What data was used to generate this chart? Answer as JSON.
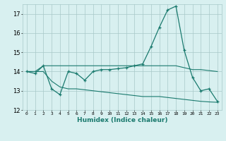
{
  "title": "",
  "xlabel": "Humidex (Indice chaleur)",
  "x": [
    0,
    1,
    2,
    3,
    4,
    5,
    6,
    7,
    8,
    9,
    10,
    11,
    12,
    13,
    14,
    15,
    16,
    17,
    18,
    19,
    20,
    21,
    22,
    23
  ],
  "y_main": [
    14.0,
    13.9,
    14.3,
    13.1,
    12.8,
    14.0,
    13.9,
    13.55,
    14.0,
    14.1,
    14.1,
    14.15,
    14.2,
    14.3,
    14.4,
    15.3,
    16.3,
    17.2,
    17.4,
    15.1,
    13.7,
    13.0,
    13.1,
    12.45
  ],
  "y_upper": [
    14.0,
    14.0,
    14.3,
    14.3,
    14.3,
    14.3,
    14.3,
    14.3,
    14.3,
    14.3,
    14.3,
    14.3,
    14.3,
    14.3,
    14.3,
    14.3,
    14.3,
    14.3,
    14.3,
    14.2,
    14.1,
    14.1,
    14.05,
    14.0
  ],
  "y_lower": [
    14.0,
    14.0,
    14.0,
    13.5,
    13.2,
    13.1,
    13.1,
    13.05,
    13.0,
    12.95,
    12.9,
    12.85,
    12.8,
    12.75,
    12.7,
    12.7,
    12.7,
    12.65,
    12.6,
    12.55,
    12.5,
    12.45,
    12.42,
    12.4
  ],
  "color": "#1a7a6e",
  "bg_color": "#d8f0f0",
  "grid_color": "#a8c8c8",
  "ylim": [
    12,
    17.5
  ],
  "yticks": [
    12,
    13,
    14,
    15,
    16,
    17
  ],
  "xticks": [
    0,
    1,
    2,
    3,
    4,
    5,
    6,
    7,
    8,
    9,
    10,
    11,
    12,
    13,
    14,
    15,
    16,
    17,
    18,
    19,
    20,
    21,
    22,
    23
  ],
  "marker": "+"
}
